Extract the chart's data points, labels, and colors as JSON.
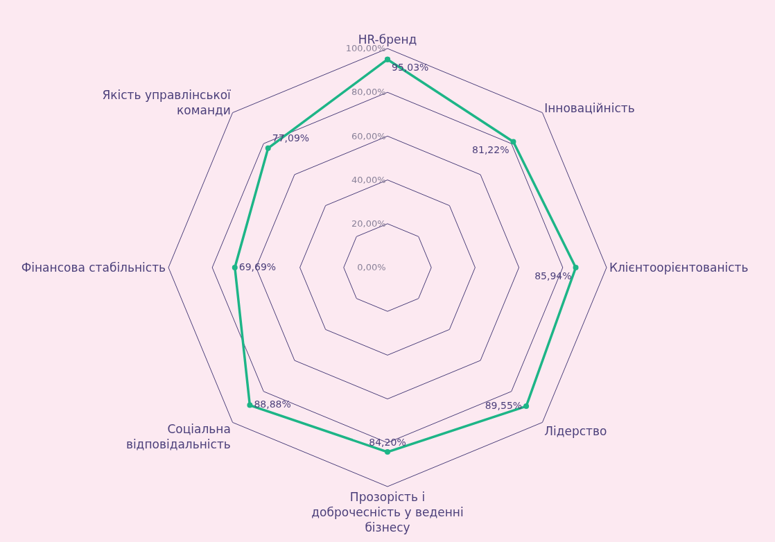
{
  "chart_data": {
    "type": "radar",
    "categories": [
      "HR-бренд",
      "Інноваційність",
      "Клієнтоорієнтованість",
      "Лідерство",
      "Прозорість і доброчесність у веденні бізнесу",
      "Соціальна відповідальність",
      "Фінансова стабільність",
      "Якість управлінської команди"
    ],
    "series": [
      {
        "color": "#1db587",
        "values": [
          95.03,
          81.22,
          85.94,
          89.55,
          84.2,
          88.88,
          69.69,
          77.09
        ],
        "value_labels": [
          "95,03%",
          "81,22%",
          "85,94%",
          "89,55%",
          "84,20%",
          "88,88%",
          "69,69%",
          "77,09%"
        ]
      }
    ],
    "ylim": [
      0,
      100
    ],
    "yticks": [
      {
        "value": 0,
        "label": "0,00%"
      },
      {
        "value": 20,
        "label": "20,00%"
      },
      {
        "value": 40,
        "label": "40,00%"
      },
      {
        "value": 60,
        "label": "60,00%"
      },
      {
        "value": 80,
        "label": "80,00%"
      },
      {
        "value": 100,
        "label": "100,00%"
      }
    ],
    "grid": true,
    "marker": "circle",
    "line_style": "solid"
  }
}
